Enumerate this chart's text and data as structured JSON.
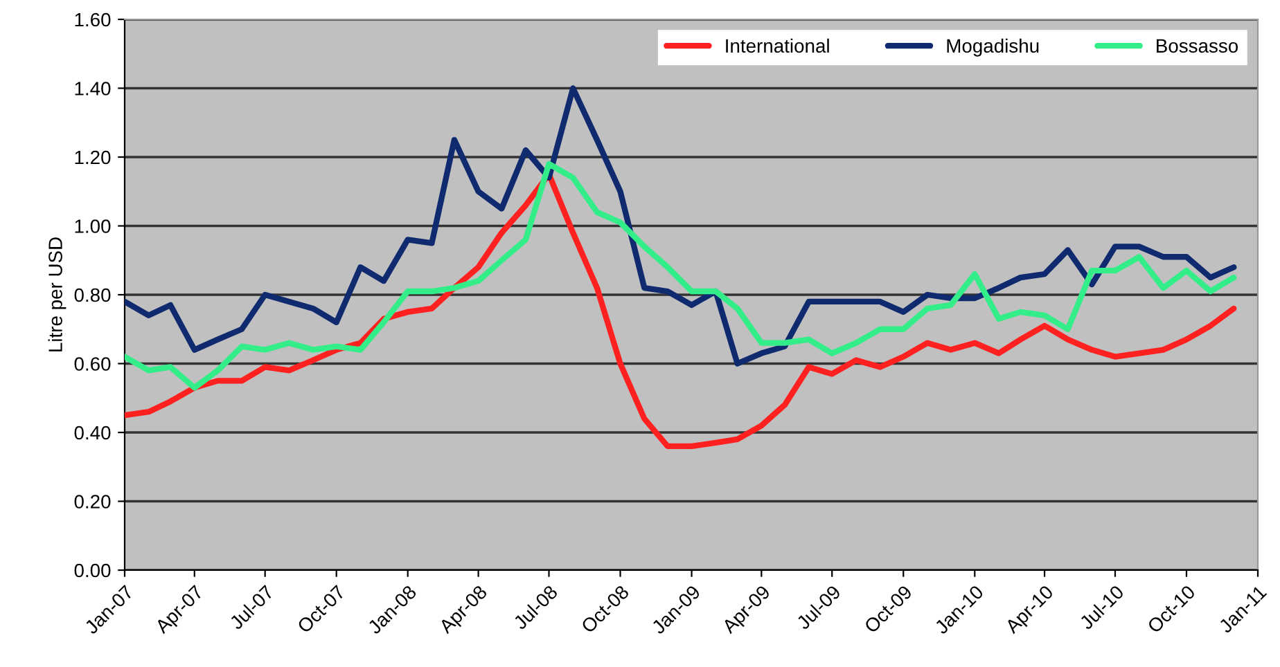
{
  "chart_data": {
    "type": "line",
    "ylabel": "Litre per USD",
    "x": [
      "2007-01",
      "2007-02",
      "2007-03",
      "2007-04",
      "2007-05",
      "2007-06",
      "2007-07",
      "2007-08",
      "2007-09",
      "2007-10",
      "2007-11",
      "2007-12",
      "2008-01",
      "2008-02",
      "2008-03",
      "2008-04",
      "2008-05",
      "2008-06",
      "2008-07",
      "2008-08",
      "2008-09",
      "2008-10",
      "2008-11",
      "2008-12",
      "2009-01",
      "2009-02",
      "2009-03",
      "2009-04",
      "2009-05",
      "2009-06",
      "2009-07",
      "2009-08",
      "2009-09",
      "2009-10",
      "2009-11",
      "2009-12",
      "2010-01",
      "2010-02",
      "2010-03",
      "2010-04",
      "2010-05",
      "2010-06",
      "2010-07",
      "2010-08",
      "2010-09",
      "2010-10",
      "2010-11",
      "2010-12"
    ],
    "series": [
      {
        "name": "International",
        "color": "#ff2020",
        "values": [
          0.45,
          0.46,
          0.49,
          0.53,
          0.55,
          0.55,
          0.59,
          0.58,
          0.61,
          0.64,
          0.66,
          0.73,
          0.75,
          0.76,
          0.82,
          0.88,
          0.98,
          1.06,
          1.15,
          0.98,
          0.82,
          0.6,
          0.44,
          0.36,
          0.36,
          0.37,
          0.38,
          0.42,
          0.48,
          0.59,
          0.57,
          0.61,
          0.59,
          0.62,
          0.66,
          0.64,
          0.66,
          0.63,
          0.67,
          0.71,
          0.67,
          0.64,
          0.62,
          0.63,
          0.64,
          0.67,
          0.71,
          0.76
        ]
      },
      {
        "name": "Mogadishu",
        "color": "#0f2a6e",
        "values": [
          0.78,
          0.74,
          0.77,
          0.64,
          0.67,
          0.7,
          0.8,
          0.78,
          0.76,
          0.72,
          0.88,
          0.84,
          0.96,
          0.95,
          1.25,
          1.1,
          1.05,
          1.22,
          1.14,
          1.4,
          1.25,
          1.1,
          0.82,
          0.81,
          0.77,
          0.81,
          0.6,
          0.63,
          0.65,
          0.78,
          0.78,
          0.78,
          0.78,
          0.75,
          0.8,
          0.79,
          0.79,
          0.82,
          0.85,
          0.86,
          0.93,
          0.83,
          0.94,
          0.94,
          0.91,
          0.91,
          0.85,
          0.88
        ]
      },
      {
        "name": "Bossasso",
        "color": "#33ee88",
        "values": [
          0.62,
          0.58,
          0.59,
          0.53,
          0.58,
          0.65,
          0.64,
          0.66,
          0.64,
          0.65,
          0.64,
          0.72,
          0.81,
          0.81,
          0.82,
          0.84,
          0.9,
          0.96,
          1.18,
          1.14,
          1.04,
          1.01,
          0.94,
          0.88,
          0.81,
          0.81,
          0.76,
          0.66,
          0.66,
          0.67,
          0.63,
          0.66,
          0.7,
          0.7,
          0.76,
          0.77,
          0.86,
          0.73,
          0.75,
          0.74,
          0.7,
          0.87,
          0.87,
          0.91,
          0.82,
          0.87,
          0.81,
          0.85
        ]
      }
    ],
    "xlim": [
      "2007-01",
      "2011-01"
    ],
    "xticks": [
      {
        "value": "2007-01",
        "label": "Jan-07"
      },
      {
        "value": "2007-04",
        "label": "Apr-07"
      },
      {
        "value": "2007-07",
        "label": "Jul-07"
      },
      {
        "value": "2007-10",
        "label": "Oct-07"
      },
      {
        "value": "2008-01",
        "label": "Jan-08"
      },
      {
        "value": "2008-04",
        "label": "Apr-08"
      },
      {
        "value": "2008-07",
        "label": "Jul-08"
      },
      {
        "value": "2008-10",
        "label": "Oct-08"
      },
      {
        "value": "2009-01",
        "label": "Jan-09"
      },
      {
        "value": "2009-04",
        "label": "Apr-09"
      },
      {
        "value": "2009-07",
        "label": "Jul-09"
      },
      {
        "value": "2009-10",
        "label": "Oct-09"
      },
      {
        "value": "2010-01",
        "label": "Jan-10"
      },
      {
        "value": "2010-04",
        "label": "Apr-10"
      },
      {
        "value": "2010-07",
        "label": "Jul-10"
      },
      {
        "value": "2010-10",
        "label": "Oct-10"
      },
      {
        "value": "2011-01",
        "label": "Jan-11"
      }
    ],
    "ylim": [
      0,
      1.6
    ],
    "yticks": [
      {
        "value": 0,
        "label": "0.00"
      },
      {
        "value": 0.2,
        "label": "0.20"
      },
      {
        "value": 0.4,
        "label": "0.40"
      },
      {
        "value": 0.6,
        "label": "0.60"
      },
      {
        "value": 0.8,
        "label": "0.80"
      },
      {
        "value": 1.0,
        "label": "1.00"
      },
      {
        "value": 1.2,
        "label": "1.20"
      },
      {
        "value": 1.4,
        "label": "1.40"
      },
      {
        "value": 1.6,
        "label": "1.60"
      }
    ],
    "grid": "y",
    "legend": "top right",
    "marker": "none",
    "line_style": "solid"
  }
}
